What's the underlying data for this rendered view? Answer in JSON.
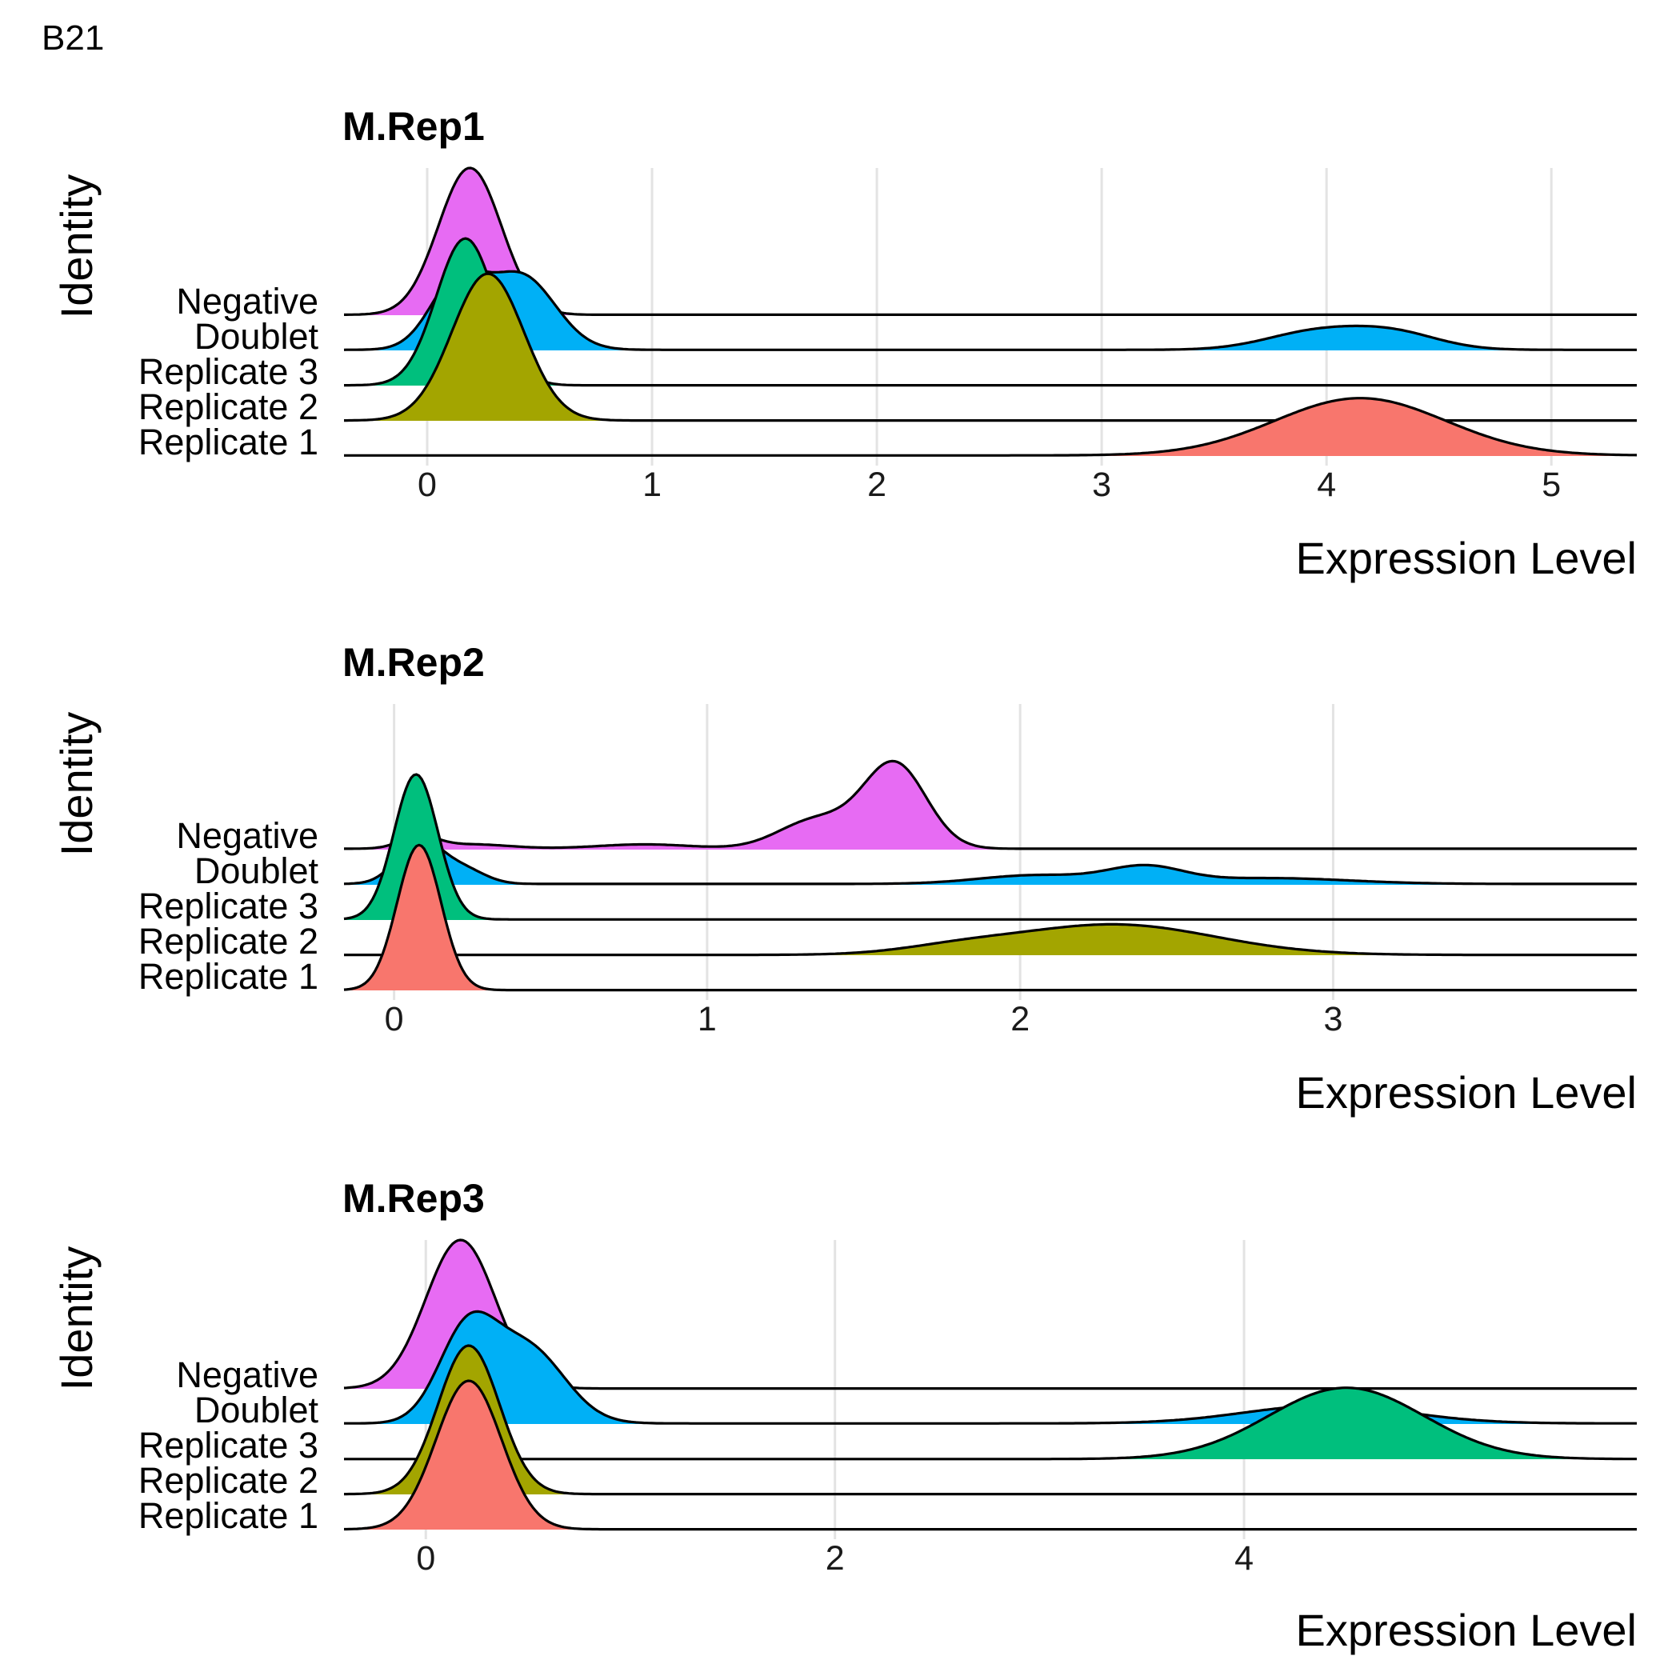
{
  "figure_label": "B21",
  "chart_data": [
    {
      "type": "ridgeline",
      "title": "M.Rep1",
      "xlabel": "Expression Level",
      "ylabel": "Identity",
      "xlim": [
        -0.37,
        5.38
      ],
      "xticks": [
        0,
        1,
        2,
        3,
        4,
        5
      ],
      "grid": true,
      "categories": [
        "Negative",
        "Doublet",
        "Replicate 3",
        "Replicate 2",
        "Replicate 1"
      ],
      "series": [
        {
          "name": "Negative",
          "color": "#E76BF3",
          "components": [
            {
              "mu": 0.19,
              "sigma": 0.14,
              "w": 1.0
            }
          ],
          "base": 0.003
        },
        {
          "name": "Doublet",
          "color": "#00B0F6",
          "components": [
            {
              "mu": 0.13,
              "sigma": 0.12,
              "w": 0.45
            },
            {
              "mu": 0.42,
              "sigma": 0.15,
              "w": 0.5
            },
            {
              "mu": 3.95,
              "sigma": 0.22,
              "w": 0.12
            },
            {
              "mu": 4.3,
              "sigma": 0.2,
              "w": 0.11
            }
          ],
          "base": 0.004
        },
        {
          "name": "Replicate 3",
          "color": "#00BF7D",
          "components": [
            {
              "mu": 0.17,
              "sigma": 0.13,
              "w": 1.0
            }
          ],
          "base": 0.002
        },
        {
          "name": "Replicate 2",
          "color": "#A3A500",
          "components": [
            {
              "mu": 0.27,
              "sigma": 0.16,
              "w": 1.0
            }
          ],
          "base": 0.002
        },
        {
          "name": "Replicate 1",
          "color": "#F8766D",
          "components": [
            {
              "mu": 4.15,
              "sigma": 0.38,
              "w": 0.39
            }
          ],
          "base": 0.004
        }
      ]
    },
    {
      "type": "ridgeline",
      "title": "M.Rep2",
      "xlabel": "Expression Level",
      "ylabel": "Identity",
      "xlim": [
        -0.16,
        3.97
      ],
      "xticks": [
        0,
        1,
        2,
        3
      ],
      "grid": true,
      "categories": [
        "Negative",
        "Doublet",
        "Replicate 3",
        "Replicate 2",
        "Replicate 1"
      ],
      "series": [
        {
          "name": "Negative",
          "color": "#E76BF3",
          "components": [
            {
              "mu": 0.08,
              "sigma": 0.06,
              "w": 0.08
            },
            {
              "mu": 0.25,
              "sigma": 0.12,
              "w": 0.03
            },
            {
              "mu": 0.8,
              "sigma": 0.15,
              "w": 0.03
            },
            {
              "mu": 1.6,
              "sigma": 0.1,
              "w": 0.58
            },
            {
              "mu": 1.35,
              "sigma": 0.12,
              "w": 0.2
            }
          ],
          "base": 0.006
        },
        {
          "name": "Doublet",
          "color": "#00B0F6",
          "components": [
            {
              "mu": 0.08,
              "sigma": 0.07,
              "w": 0.3
            },
            {
              "mu": 0.22,
              "sigma": 0.07,
              "w": 0.1
            },
            {
              "mu": 2.05,
              "sigma": 0.18,
              "w": 0.06
            },
            {
              "mu": 2.4,
              "sigma": 0.12,
              "w": 0.11
            },
            {
              "mu": 2.8,
              "sigma": 0.25,
              "w": 0.04
            }
          ],
          "base": 0.006
        },
        {
          "name": "Replicate 3",
          "color": "#00BF7D",
          "components": [
            {
              "mu": 0.07,
              "sigma": 0.07,
              "w": 1.0
            }
          ],
          "base": 0.004
        },
        {
          "name": "Replicate 2",
          "color": "#A3A500",
          "components": [
            {
              "mu": 2.3,
              "sigma": 0.32,
              "w": 0.21
            },
            {
              "mu": 1.8,
              "sigma": 0.18,
              "w": 0.04
            }
          ],
          "base": 0.002
        },
        {
          "name": "Replicate 1",
          "color": "#F8766D",
          "components": [
            {
              "mu": 0.08,
              "sigma": 0.07,
              "w": 1.0
            }
          ],
          "base": 0.002
        }
      ]
    },
    {
      "type": "ridgeline",
      "title": "M.Rep3",
      "xlabel": "Expression Level",
      "ylabel": "Identity",
      "xlim": [
        -0.4,
        5.92
      ],
      "xticks": [
        0,
        2,
        4
      ],
      "grid": true,
      "categories": [
        "Negative",
        "Doublet",
        "Replicate 3",
        "Replicate 2",
        "Replicate 1"
      ],
      "series": [
        {
          "name": "Negative",
          "color": "#E76BF3",
          "components": [
            {
              "mu": 0.17,
              "sigma": 0.17,
              "w": 1.0
            }
          ],
          "base": 0.002
        },
        {
          "name": "Doublet",
          "color": "#00B0F6",
          "components": [
            {
              "mu": 0.2,
              "sigma": 0.14,
              "w": 0.6
            },
            {
              "mu": 0.5,
              "sigma": 0.18,
              "w": 0.5
            },
            {
              "mu": 4.4,
              "sigma": 0.4,
              "w": 0.12
            }
          ],
          "base": 0.004
        },
        {
          "name": "Replicate 3",
          "color": "#00BF7D",
          "components": [
            {
              "mu": 4.5,
              "sigma": 0.38,
              "w": 0.48
            }
          ],
          "base": 0.001
        },
        {
          "name": "Replicate 2",
          "color": "#A3A500",
          "components": [
            {
              "mu": 0.21,
              "sigma": 0.15,
              "w": 1.0
            }
          ],
          "base": 0.002
        },
        {
          "name": "Replicate 1",
          "color": "#F8766D",
          "components": [
            {
              "mu": 0.21,
              "sigma": 0.16,
              "w": 1.0
            }
          ],
          "base": 0.002
        }
      ]
    }
  ]
}
